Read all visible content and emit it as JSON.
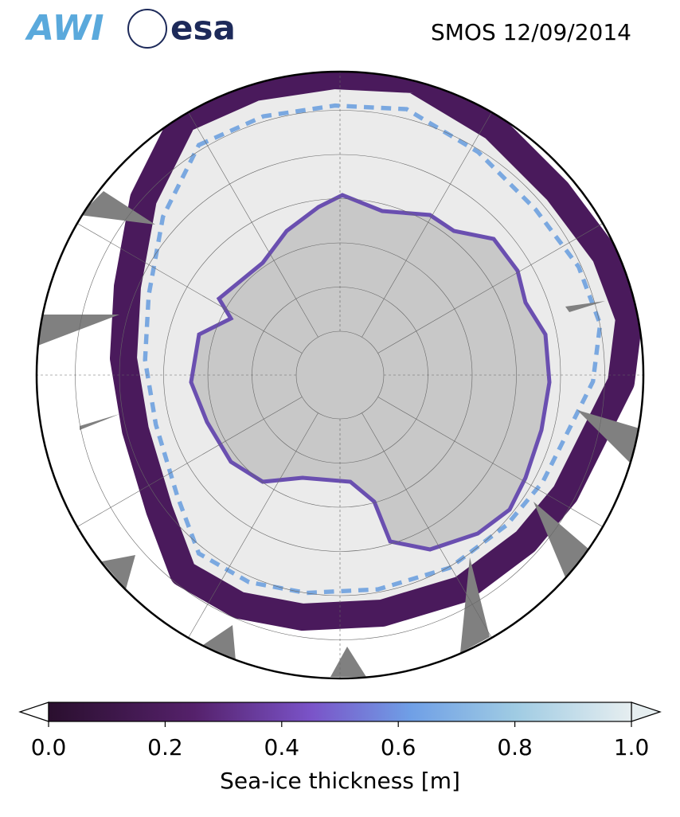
{
  "header": {
    "title": "SMOS 12/09/2014",
    "logos": [
      "AWI",
      "esa"
    ]
  },
  "colorbar": {
    "label": "Sea-ice thickness [m]",
    "lim": [
      0,
      1
    ],
    "ticks": [
      {
        "value": 0,
        "label": "0.0"
      },
      0.2,
      0.4,
      0.6,
      0.8,
      {
        "value": 1,
        "label": "1.0"
      }
    ]
  }
}
